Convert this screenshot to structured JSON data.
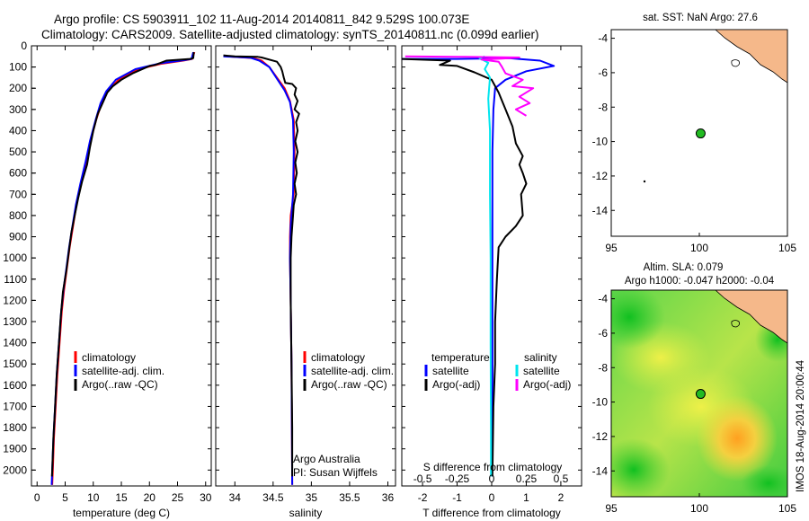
{
  "header": {
    "title_line1": "Argo profile: CS 5903911_102 11-Aug-2014 20140811_842 9.529S 100.073E",
    "title_line2": "Climatology: CARS2009. Satellite-adjusted climatology: synTS_20140811.nc (0.099d earlier)"
  },
  "watermark": "IMOS 18-Aug-2014 20:00:44",
  "colors": {
    "climatology": "#ff0000",
    "satellite": "#0000ff",
    "argo": "#000000",
    "sal_satellite": "#00e5ee",
    "sal_argo": "#ff00ff",
    "land": "#f5b88a",
    "float_marker": "#22bb22"
  },
  "chart_data": [
    {
      "type": "line",
      "name": "temperature-profile",
      "xlabel": "temperature (deg C)",
      "ylabel": "",
      "xlim": [
        -1,
        31
      ],
      "ylim": [
        0,
        2075
      ],
      "y_reversed": true,
      "xticks": [
        0,
        5,
        10,
        15,
        20,
        25,
        30
      ],
      "yticks": [
        0,
        100,
        200,
        300,
        400,
        500,
        600,
        700,
        800,
        900,
        1000,
        1100,
        1200,
        1300,
        1400,
        1500,
        1600,
        1700,
        1800,
        1900,
        2000
      ],
      "legend": [
        "climatology",
        "satellite-adj. clim.",
        "Argo(..raw -QC)"
      ],
      "legend_position": "bottom-center",
      "series": [
        {
          "name": "climatology",
          "color": "#ff0000",
          "points": [
            [
              28,
              30
            ],
            [
              27.6,
              62
            ],
            [
              26,
              70
            ],
            [
              22,
              85
            ],
            [
              18,
              110
            ],
            [
              14.5,
              160
            ],
            [
              12.5,
              215
            ],
            [
              11.5,
              270
            ],
            [
              10.5,
              350
            ],
            [
              9.5,
              450
            ],
            [
              8.7,
              550
            ],
            [
              7.8,
              650
            ],
            [
              7,
              750
            ],
            [
              6.4,
              850
            ],
            [
              5.8,
              950
            ],
            [
              5.3,
              1050
            ],
            [
              4.8,
              1150
            ],
            [
              4.4,
              1250
            ],
            [
              4,
              1400
            ],
            [
              3.6,
              1550
            ],
            [
              3.3,
              1700
            ],
            [
              3,
              1850
            ],
            [
              2.8,
              2000
            ],
            [
              2.7,
              2070
            ]
          ]
        },
        {
          "name": "satellite-adj. clim.",
          "color": "#0000ff",
          "points": [
            [
              27.8,
              30
            ],
            [
              27.5,
              62
            ],
            [
              26,
              68
            ],
            [
              22,
              82
            ],
            [
              17.5,
              110
            ],
            [
              14,
              160
            ],
            [
              12.3,
              215
            ],
            [
              11.3,
              270
            ],
            [
              10.4,
              350
            ],
            [
              9.4,
              450
            ],
            [
              8.6,
              550
            ],
            [
              7.7,
              650
            ],
            [
              6.9,
              750
            ],
            [
              6.3,
              850
            ],
            [
              5.7,
              950
            ],
            [
              5.2,
              1050
            ],
            [
              4.7,
              1150
            ],
            [
              4.3,
              1250
            ],
            [
              3.9,
              1400
            ],
            [
              3.5,
              1550
            ],
            [
              3.2,
              1700
            ],
            [
              2.9,
              1850
            ],
            [
              2.7,
              2000
            ],
            [
              2.6,
              2070
            ]
          ]
        },
        {
          "name": "Argo(..raw -QC)",
          "color": "#000000",
          "points": [
            [
              27.9,
              30
            ],
            [
              27.8,
              58
            ],
            [
              27.2,
              62
            ],
            [
              25,
              66
            ],
            [
              23,
              70
            ],
            [
              21,
              90
            ],
            [
              20,
              95
            ],
            [
              17,
              130
            ],
            [
              15,
              160
            ],
            [
              13.5,
              190
            ],
            [
              12.5,
              220
            ],
            [
              11.5,
              280
            ],
            [
              10.8,
              320
            ],
            [
              10,
              400
            ],
            [
              9.4,
              480
            ],
            [
              8.9,
              560
            ],
            [
              8,
              640
            ],
            [
              7.3,
              720
            ],
            [
              6.7,
              800
            ],
            [
              6.1,
              880
            ],
            [
              5.7,
              960
            ],
            [
              5.2,
              1060
            ],
            [
              4.6,
              1160
            ],
            [
              4.2,
              1280
            ],
            [
              3.9,
              1400
            ],
            [
              3.5,
              1550
            ],
            [
              3.2,
              1700
            ],
            [
              2.9,
              1850
            ],
            [
              2.7,
              2000
            ],
            [
              2.65,
              2030
            ]
          ]
        }
      ]
    },
    {
      "type": "line",
      "name": "salinity-profile",
      "xlabel": "salinity",
      "xlim": [
        33.75,
        36.1
      ],
      "ylim": [
        0,
        2075
      ],
      "y_reversed": true,
      "xticks": [
        34,
        34.5,
        35,
        35.5,
        36
      ],
      "legend": [
        "climatology",
        "satellite-adj. clim.",
        "Argo(..raw -QC)"
      ],
      "legend_position": "bottom-center",
      "annotation": [
        "Argo Australia",
        "PI: Susan Wijffels"
      ],
      "series": [
        {
          "name": "climatology",
          "color": "#ff0000",
          "points": [
            [
              33.9,
              50
            ],
            [
              34.25,
              58
            ],
            [
              34.35,
              70
            ],
            [
              34.45,
              100
            ],
            [
              34.55,
              150
            ],
            [
              34.65,
              200
            ],
            [
              34.72,
              260
            ],
            [
              34.77,
              350
            ],
            [
              34.78,
              500
            ],
            [
              34.77,
              700
            ],
            [
              34.73,
              800
            ],
            [
              34.72,
              900
            ],
            [
              34.72,
              1000
            ],
            [
              34.73,
              1200
            ],
            [
              34.74,
              1500
            ],
            [
              34.75,
              2070
            ]
          ]
        },
        {
          "name": "satellite-adj. clim.",
          "color": "#0000ff",
          "points": [
            [
              33.85,
              50
            ],
            [
              34.2,
              56
            ],
            [
              34.32,
              70
            ],
            [
              34.45,
              100
            ],
            [
              34.56,
              160
            ],
            [
              34.65,
              210
            ],
            [
              34.72,
              265
            ],
            [
              34.76,
              350
            ],
            [
              34.77,
              500
            ],
            [
              34.76,
              700
            ],
            [
              34.73,
              850
            ],
            [
              34.72,
              1000
            ],
            [
              34.73,
              1200
            ],
            [
              34.74,
              1500
            ],
            [
              34.75,
              2070
            ]
          ]
        },
        {
          "name": "Argo(..raw -QC)",
          "color": "#000000",
          "points": [
            [
              33.85,
              45
            ],
            [
              34.0,
              50
            ],
            [
              34.3,
              52
            ],
            [
              34.35,
              55
            ],
            [
              34.55,
              75
            ],
            [
              34.6,
              100
            ],
            [
              34.62,
              120
            ],
            [
              34.64,
              150
            ],
            [
              34.66,
              175
            ],
            [
              34.75,
              180
            ],
            [
              34.8,
              200
            ],
            [
              34.78,
              230
            ],
            [
              34.82,
              260
            ],
            [
              34.78,
              300
            ],
            [
              34.84,
              320
            ],
            [
              34.8,
              360
            ],
            [
              34.82,
              400
            ],
            [
              34.79,
              450
            ],
            [
              34.82,
              500
            ],
            [
              34.79,
              550
            ],
            [
              34.81,
              600
            ],
            [
              34.78,
              650
            ],
            [
              34.8,
              700
            ],
            [
              34.77,
              750
            ],
            [
              34.76,
              800
            ],
            [
              34.74,
              900
            ],
            [
              34.73,
              1000
            ],
            [
              34.73,
              1200
            ],
            [
              34.74,
              1500
            ],
            [
              34.75,
              1800
            ],
            [
              34.75,
              2030
            ]
          ]
        }
      ]
    },
    {
      "type": "line",
      "name": "difference-profile",
      "xlabel": "T difference from climatology",
      "top_xlabel": "S difference from climatology",
      "xlim": [
        -2.6,
        2.6
      ],
      "ylim": [
        0,
        2075
      ],
      "y_reversed": true,
      "xticks": [
        -2,
        -1,
        0,
        1,
        2
      ],
      "xticklabels": [
        "-2",
        "-1",
        "0",
        "1",
        "2"
      ],
      "top_xticks": [
        -2,
        -1,
        0,
        1,
        2
      ],
      "top_xticklabels": [
        "-0.5",
        "-0.25",
        "0",
        "0.25",
        "0.5"
      ],
      "legend_temperature": {
        "heading": "temperature",
        "items": [
          "satellite",
          "Argo(-adj)"
        ]
      },
      "legend_salinity": {
        "heading": "salinity",
        "items": [
          "satellite",
          "Argo(-adj)"
        ]
      },
      "series": [
        {
          "name": "temperature satellite",
          "color": "#0000ff",
          "points": [
            [
              -2.6,
              62
            ],
            [
              -1,
              62
            ],
            [
              0.5,
              58
            ],
            [
              1.4,
              70
            ],
            [
              1.8,
              95
            ],
            [
              1,
              120
            ],
            [
              0.4,
              160
            ],
            [
              0.1,
              200
            ],
            [
              0.05,
              300
            ],
            [
              0.02,
              500
            ],
            [
              0.02,
              800
            ],
            [
              0.02,
              1200
            ],
            [
              0.02,
              1600
            ],
            [
              0.01,
              2030
            ]
          ]
        },
        {
          "name": "temperature Argo(-adj)",
          "color": "#000000",
          "points": [
            [
              -2.6,
              62
            ],
            [
              -1.2,
              70
            ],
            [
              -1.5,
              90
            ],
            [
              -1,
              95
            ],
            [
              -0.5,
              125
            ],
            [
              0,
              160
            ],
            [
              0.2,
              220
            ],
            [
              0.4,
              300
            ],
            [
              0.6,
              380
            ],
            [
              0.7,
              460
            ],
            [
              0.9,
              520
            ],
            [
              0.8,
              560
            ],
            [
              0.9,
              600
            ],
            [
              1.0,
              650
            ],
            [
              0.85,
              700
            ],
            [
              0.9,
              800
            ],
            [
              0.7,
              850
            ],
            [
              0.4,
              900
            ],
            [
              0.2,
              950
            ],
            [
              0.15,
              1100
            ],
            [
              0.1,
              1300
            ],
            [
              0.1,
              1500
            ],
            [
              0.05,
              1700
            ],
            [
              0.02,
              2030
            ]
          ]
        },
        {
          "name": "salinity satellite",
          "color": "#00e5ee",
          "points": [
            [
              -0.2,
              50
            ],
            [
              -0.35,
              58
            ],
            [
              -0.1,
              80
            ],
            [
              -0.2,
              110
            ],
            [
              -0.05,
              150
            ],
            [
              -0.1,
              250
            ],
            [
              -0.05,
              400
            ],
            [
              -0.05,
              700
            ],
            [
              -0.03,
              1000
            ],
            [
              -0.03,
              1400
            ],
            [
              -0.02,
              1800
            ],
            [
              -0.02,
              2030
            ]
          ]
        },
        {
          "name": "salinity Argo(-adj)",
          "color": "#ff00ff",
          "points": [
            [
              -2.5,
              50
            ],
            [
              -0.8,
              52
            ],
            [
              0.8,
              55
            ],
            [
              0.3,
              60
            ],
            [
              -0.3,
              65
            ],
            [
              0.2,
              75
            ],
            [
              0.3,
              100
            ],
            [
              0.4,
              130
            ],
            [
              0.9,
              160
            ],
            [
              0.6,
              190
            ],
            [
              1.2,
              200
            ],
            [
              0.8,
              240
            ],
            [
              1.1,
              270
            ],
            [
              0.7,
              300
            ],
            [
              1.0,
              330
            ]
          ]
        }
      ]
    },
    {
      "type": "map",
      "name": "sst-map",
      "title": "sat. SST: NaN Argo: 27.6",
      "xlim": [
        95,
        105
      ],
      "ylim": [
        -15.5,
        -3.5
      ],
      "xticks": [
        95,
        100,
        105
      ],
      "yticks": [
        -4,
        -6,
        -8,
        -10,
        -12,
        -14
      ],
      "float_position": {
        "lon": 100.073,
        "lat": -9.529
      },
      "background": "#ffffff"
    },
    {
      "type": "heatmap",
      "name": "sla-map",
      "title_line1": "Altim. SLA: 0.079",
      "title_line2": "Argo h1000: -0.047 h2000: -0.04",
      "xlim": [
        95,
        105
      ],
      "ylim": [
        -15.5,
        -3.5
      ],
      "xticks": [
        95,
        100,
        105
      ],
      "yticks": [
        -4,
        -6,
        -8,
        -10,
        -12,
        -14
      ],
      "float_position": {
        "lon": 100.073,
        "lat": -9.529
      }
    }
  ]
}
